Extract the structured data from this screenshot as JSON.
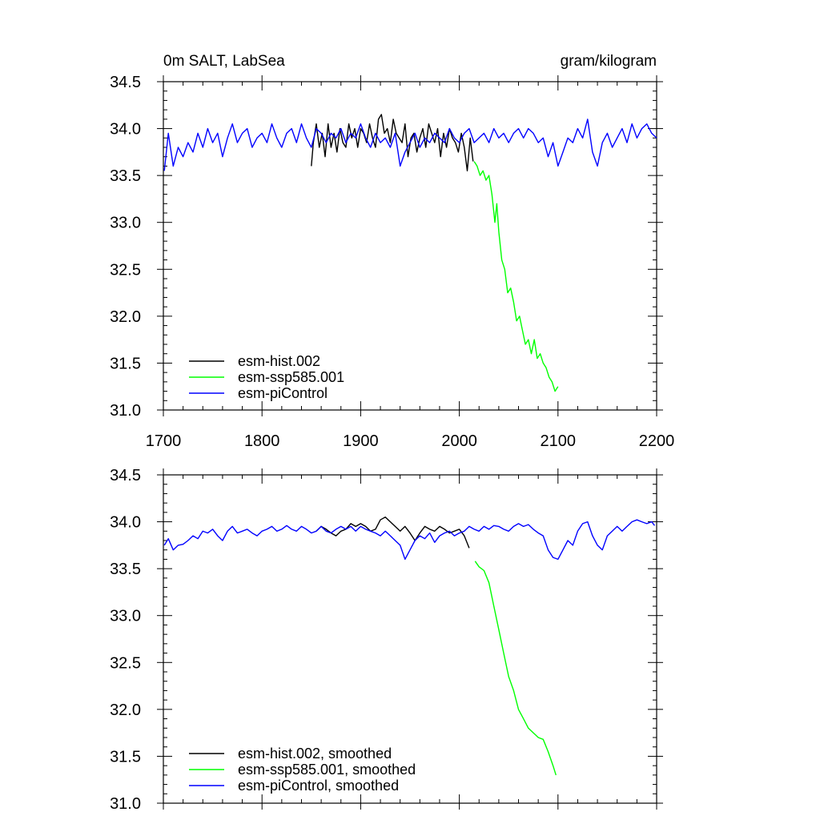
{
  "chart_data": [
    {
      "type": "line",
      "title_left": "0m SALT, LabSea",
      "title_right": "gram/kilogram",
      "xlim": [
        1700,
        2200
      ],
      "ylim": [
        31.0,
        34.5
      ],
      "x_ticks": [
        1700,
        1800,
        1900,
        2000,
        2100,
        2200
      ],
      "x_tick_labels": [
        "1700",
        "1800",
        "1900",
        "2000",
        "2100",
        "2200"
      ],
      "y_ticks": [
        31.0,
        31.5,
        32.0,
        32.5,
        33.0,
        33.5,
        34.0,
        34.5
      ],
      "y_tick_labels": [
        "31.0",
        "31.5",
        "32.0",
        "32.5",
        "33.0",
        "33.5",
        "34.0",
        "34.5"
      ],
      "legend": "bottom-left",
      "series": [
        {
          "name": "esm-hist.002",
          "color": "#000000",
          "x": [
            1850,
            1852,
            1855,
            1858,
            1861,
            1864,
            1867,
            1870,
            1873,
            1876,
            1879,
            1882,
            1885,
            1888,
            1891,
            1894,
            1897,
            1900,
            1903,
            1906,
            1909,
            1912,
            1915,
            1918,
            1921,
            1924,
            1927,
            1930,
            1933,
            1936,
            1939,
            1942,
            1945,
            1948,
            1951,
            1954,
            1957,
            1960,
            1963,
            1966,
            1969,
            1972,
            1975,
            1978,
            1981,
            1984,
            1987,
            1990,
            1993,
            1996,
            1999,
            2002,
            2005,
            2008,
            2011,
            2014
          ],
          "y": [
            33.6,
            33.85,
            34.05,
            33.8,
            33.95,
            33.7,
            34.05,
            33.8,
            33.95,
            33.75,
            34.0,
            33.85,
            33.8,
            34.05,
            33.9,
            34.0,
            33.8,
            34.0,
            33.95,
            33.85,
            34.05,
            33.9,
            33.8,
            34.1,
            34.15,
            33.95,
            34.0,
            33.85,
            34.1,
            33.95,
            33.9,
            33.85,
            34.05,
            33.7,
            33.9,
            33.95,
            33.75,
            33.9,
            34.0,
            33.8,
            34.05,
            33.95,
            33.85,
            34.0,
            33.7,
            33.95,
            33.8,
            34.0,
            33.9,
            33.85,
            33.75,
            33.95,
            33.8,
            33.55,
            33.9,
            33.65
          ]
        },
        {
          "name": "esm-ssp585.001",
          "color": "#00ff00",
          "x": [
            2015,
            2018,
            2021,
            2024,
            2027,
            2030,
            2033,
            2036,
            2038,
            2040,
            2043,
            2046,
            2049,
            2052,
            2055,
            2058,
            2061,
            2064,
            2067,
            2070,
            2073,
            2076,
            2079,
            2082,
            2085,
            2088,
            2091,
            2094,
            2097,
            2100
          ],
          "y": [
            33.65,
            33.6,
            33.5,
            33.55,
            33.45,
            33.5,
            33.3,
            33.0,
            33.2,
            32.9,
            32.6,
            32.5,
            32.25,
            32.3,
            32.15,
            31.95,
            32.0,
            31.85,
            31.7,
            31.75,
            31.6,
            31.75,
            31.55,
            31.6,
            31.5,
            31.45,
            31.35,
            31.3,
            31.2,
            31.25
          ]
        },
        {
          "name": "esm-piControl",
          "color": "#0000ff",
          "x": [
            1701,
            1705,
            1710,
            1715,
            1720,
            1725,
            1730,
            1735,
            1740,
            1745,
            1750,
            1755,
            1760,
            1765,
            1770,
            1775,
            1780,
            1785,
            1790,
            1795,
            1800,
            1805,
            1810,
            1815,
            1820,
            1825,
            1830,
            1835,
            1840,
            1845,
            1850,
            1855,
            1860,
            1865,
            1870,
            1875,
            1880,
            1885,
            1890,
            1895,
            1900,
            1905,
            1910,
            1915,
            1920,
            1925,
            1930,
            1935,
            1940,
            1945,
            1950,
            1955,
            1960,
            1965,
            1970,
            1975,
            1980,
            1985,
            1990,
            1995,
            2000,
            2005,
            2010,
            2015,
            2020,
            2025,
            2030,
            2035,
            2040,
            2045,
            2050,
            2055,
            2060,
            2065,
            2070,
            2075,
            2080,
            2085,
            2090,
            2095,
            2100,
            2105,
            2110,
            2115,
            2120,
            2125,
            2130,
            2135,
            2140,
            2145,
            2150,
            2155,
            2160,
            2165,
            2170,
            2175,
            2180,
            2185,
            2190,
            2195,
            2200
          ],
          "y": [
            33.55,
            33.95,
            33.6,
            33.8,
            33.7,
            33.85,
            33.75,
            33.95,
            33.8,
            34.0,
            33.85,
            33.95,
            33.7,
            33.9,
            34.05,
            33.85,
            33.95,
            34.0,
            33.8,
            33.9,
            33.95,
            33.85,
            34.05,
            33.9,
            33.8,
            33.95,
            34.0,
            33.85,
            34.05,
            33.9,
            33.8,
            34.0,
            33.95,
            33.85,
            33.95,
            33.9,
            34.0,
            33.85,
            33.95,
            33.9,
            34.05,
            33.9,
            33.8,
            33.95,
            33.85,
            33.9,
            33.8,
            33.95,
            33.6,
            33.75,
            33.85,
            33.95,
            33.8,
            33.9,
            33.85,
            33.95,
            33.9,
            33.85,
            34.0,
            33.9,
            33.85,
            33.95,
            34.0,
            33.85,
            33.9,
            33.95,
            33.85,
            34.0,
            33.9,
            33.95,
            33.85,
            33.95,
            34.0,
            33.9,
            34.0,
            33.95,
            33.85,
            33.9,
            33.7,
            33.85,
            33.6,
            33.75,
            33.9,
            33.85,
            34.0,
            33.9,
            34.1,
            33.75,
            33.6,
            33.85,
            33.95,
            33.8,
            33.9,
            34.0,
            33.85,
            34.05,
            33.9,
            34.0,
            34.05,
            33.95,
            33.9
          ]
        }
      ]
    },
    {
      "type": "line",
      "xlim": [
        1700,
        2200
      ],
      "ylim": [
        31.0,
        34.5
      ],
      "x_ticks": [
        1700,
        1800,
        1900,
        2000,
        2100,
        2200
      ],
      "y_ticks": [
        31.0,
        31.5,
        32.0,
        32.5,
        33.0,
        33.5,
        34.0,
        34.5
      ],
      "y_tick_labels": [
        "31.0",
        "31.5",
        "32.0",
        "32.5",
        "33.0",
        "33.5",
        "34.0",
        "34.5"
      ],
      "legend": "bottom-left",
      "series": [
        {
          "name": "esm-hist.002, smoothed",
          "color": "#000000",
          "x": [
            1855,
            1860,
            1865,
            1870,
            1875,
            1880,
            1885,
            1890,
            1895,
            1900,
            1905,
            1910,
            1915,
            1920,
            1925,
            1930,
            1935,
            1940,
            1945,
            1950,
            1955,
            1960,
            1965,
            1970,
            1975,
            1980,
            1985,
            1990,
            1995,
            2000,
            2005,
            2010
          ],
          "y": [
            33.9,
            33.95,
            33.92,
            33.88,
            33.85,
            33.9,
            33.92,
            33.98,
            33.95,
            33.98,
            33.95,
            33.9,
            33.92,
            34.02,
            34.05,
            34.0,
            33.95,
            33.9,
            33.95,
            33.88,
            33.8,
            33.88,
            33.95,
            33.92,
            33.9,
            33.95,
            33.92,
            33.88,
            33.9,
            33.92,
            33.85,
            33.72
          ]
        },
        {
          "name": "esm-ssp585.001, smoothed",
          "color": "#00ff00",
          "x": [
            2016,
            2020,
            2025,
            2030,
            2035,
            2040,
            2045,
            2050,
            2055,
            2060,
            2065,
            2070,
            2075,
            2080,
            2085,
            2090,
            2095,
            2098
          ],
          "y": [
            33.58,
            33.52,
            33.48,
            33.35,
            33.1,
            32.85,
            32.6,
            32.35,
            32.2,
            32.0,
            31.9,
            31.8,
            31.75,
            31.7,
            31.68,
            31.55,
            31.4,
            31.3
          ]
        },
        {
          "name": "esm-piControl, smoothed",
          "color": "#0000ff",
          "x": [
            1701,
            1705,
            1710,
            1715,
            1720,
            1725,
            1730,
            1735,
            1740,
            1745,
            1750,
            1755,
            1760,
            1765,
            1770,
            1775,
            1780,
            1785,
            1790,
            1795,
            1800,
            1805,
            1810,
            1815,
            1820,
            1825,
            1830,
            1835,
            1840,
            1845,
            1850,
            1855,
            1860,
            1865,
            1870,
            1875,
            1880,
            1885,
            1890,
            1895,
            1900,
            1905,
            1910,
            1915,
            1920,
            1925,
            1930,
            1935,
            1940,
            1945,
            1950,
            1955,
            1960,
            1965,
            1970,
            1975,
            1980,
            1985,
            1990,
            1995,
            2000,
            2005,
            2010,
            2015,
            2020,
            2025,
            2030,
            2035,
            2040,
            2045,
            2050,
            2055,
            2060,
            2065,
            2070,
            2075,
            2080,
            2085,
            2090,
            2095,
            2100,
            2105,
            2110,
            2115,
            2120,
            2125,
            2130,
            2135,
            2140,
            2145,
            2150,
            2155,
            2160,
            2165,
            2170,
            2175,
            2180,
            2185,
            2190,
            2195,
            2198
          ],
          "y": [
            33.75,
            33.82,
            33.7,
            33.75,
            33.76,
            33.8,
            33.85,
            33.82,
            33.9,
            33.88,
            33.92,
            33.85,
            33.8,
            33.9,
            33.95,
            33.88,
            33.9,
            33.92,
            33.88,
            33.85,
            33.9,
            33.92,
            33.95,
            33.9,
            33.92,
            33.96,
            33.92,
            33.9,
            33.95,
            33.92,
            33.88,
            33.9,
            33.95,
            33.9,
            33.88,
            33.92,
            33.95,
            33.92,
            33.95,
            33.9,
            33.95,
            33.92,
            33.9,
            33.88,
            33.85,
            33.9,
            33.85,
            33.8,
            33.75,
            33.6,
            33.7,
            33.8,
            33.85,
            33.82,
            33.88,
            33.78,
            33.85,
            33.88,
            33.9,
            33.85,
            33.88,
            33.9,
            33.95,
            33.92,
            33.9,
            33.95,
            33.92,
            33.96,
            33.95,
            33.92,
            33.9,
            33.95,
            33.98,
            33.95,
            33.97,
            33.92,
            33.88,
            33.85,
            33.7,
            33.62,
            33.6,
            33.7,
            33.8,
            33.75,
            33.9,
            33.98,
            34.0,
            33.85,
            33.75,
            33.7,
            33.85,
            33.9,
            33.95,
            33.9,
            33.95,
            34.0,
            34.02,
            34.0,
            33.98,
            34.0,
            33.96
          ]
        }
      ]
    }
  ]
}
